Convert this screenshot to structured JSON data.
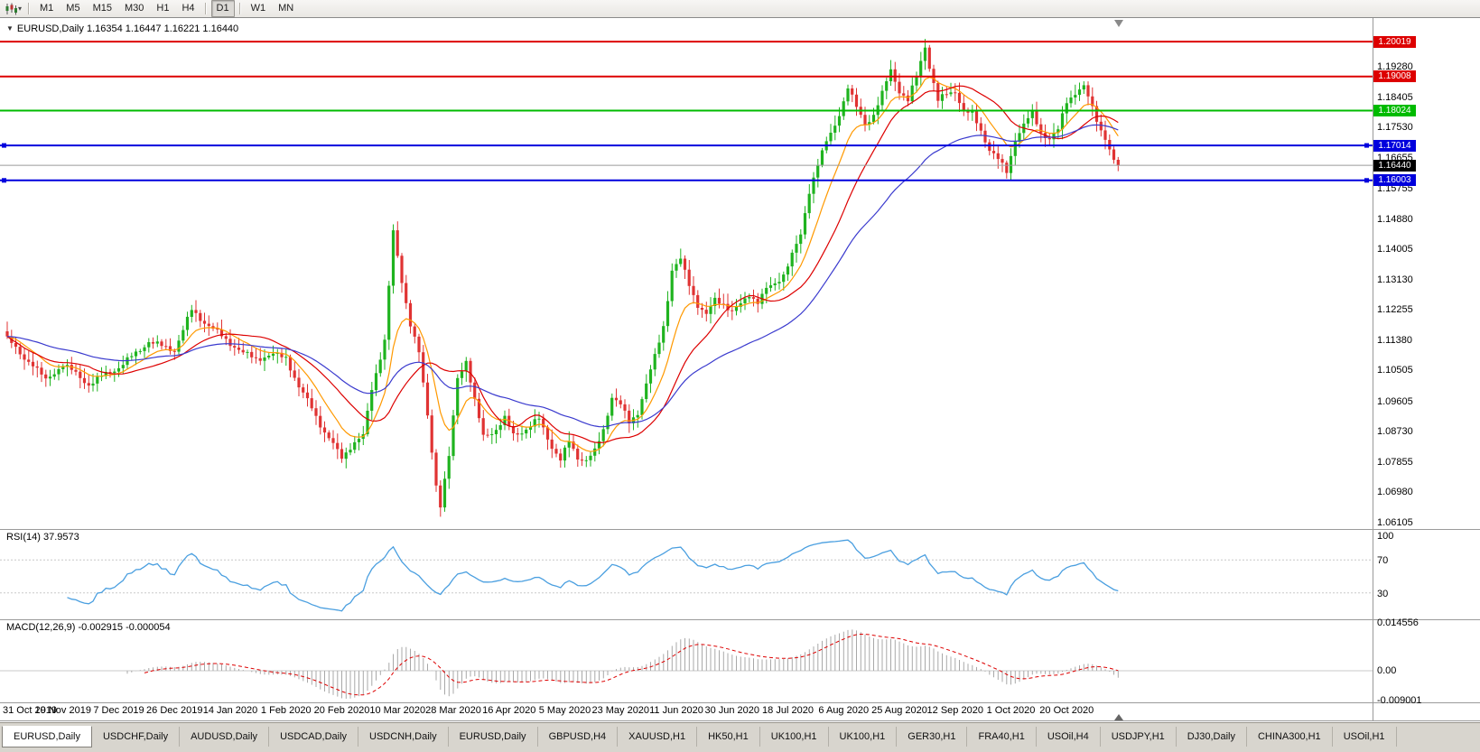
{
  "toolbar": {
    "timeframes": [
      "M1",
      "M5",
      "M15",
      "M30",
      "H1",
      "H4",
      "D1",
      "W1",
      "MN"
    ],
    "active_timeframe": "D1",
    "separators_after": [
      "H4",
      "D1"
    ]
  },
  "tabs": {
    "active_index": 0,
    "items": [
      "EURUSD,Daily",
      "USDCHF,Daily",
      "AUDUSD,Daily",
      "USDCAD,Daily",
      "USDCNH,Daily",
      "EURUSD,Daily",
      "GBPUSD,H4",
      "XAUUSD,H1",
      "HK50,H1",
      "UK100,H1",
      "UK100,H1",
      "GER30,H1",
      "FRA40,H1",
      "USOil,H4",
      "USDJPY,H1",
      "DJ30,Daily",
      "CHINA300,H1",
      "USOil,H1"
    ]
  },
  "chart_data": {
    "type": "candlestick",
    "title_symbol": "EURUSD,Daily",
    "title_ohlc": "1.16354 1.16447 1.16221 1.16440",
    "price_axis_ticks": [
      "1.19280",
      "1.18405",
      "1.17530",
      "1.16655",
      "1.15755",
      "1.14880",
      "1.14005",
      "1.13130",
      "1.12255",
      "1.11380",
      "1.10505",
      "1.09605",
      "1.08730",
      "1.07855",
      "1.06980",
      "1.06105"
    ],
    "price_axis_range": [
      1.0592,
      1.207
    ],
    "date_axis_labels": [
      "31 Oct 2019",
      "19 Nov 2019",
      "7 Dec 2019",
      "26 Dec 2019",
      "14 Jan 2020",
      "1 Feb 2020",
      "20 Feb 2020",
      "10 Mar 2020",
      "28 Mar 2020",
      "16 Apr 2020",
      "5 May 2020",
      "23 May 2020",
      "11 Jun 2020",
      "30 Jun 2020",
      "18 Jul 2020",
      "6 Aug 2020",
      "25 Aug 2020",
      "12 Sep 2020",
      "1 Oct 2020",
      "20 Oct 2020"
    ],
    "bars_per_date_label": 13,
    "bars_total": 260,
    "candle_colors": {
      "up": "#1fb31f",
      "down": "#e03333"
    },
    "horizontal_lines": [
      {
        "price": 1.20019,
        "label": "1.20019",
        "color": "#dd0000",
        "handles": false
      },
      {
        "price": 1.19008,
        "label": "1.19008",
        "color": "#dd0000",
        "handles": false
      },
      {
        "price": 1.18024,
        "label": "1.18024",
        "color": "#00bb00",
        "handles": false
      },
      {
        "price": 1.17014,
        "label": "1.17014",
        "color": "#0000dd",
        "handles": true
      },
      {
        "price": 1.16003,
        "label": "1.16003",
        "color": "#0000dd",
        "handles": true
      }
    ],
    "bid_line": {
      "price": 1.1644,
      "label": "1.16440",
      "color": "#000000",
      "line_color": "#9a9a9a"
    },
    "moving_averages": [
      {
        "type": "ema",
        "period": 10,
        "color": "#ff9900"
      },
      {
        "type": "sma",
        "period": 20,
        "color": "#dd0000"
      },
      {
        "type": "ema",
        "period": 45,
        "color": "#3a3ace"
      }
    ],
    "close_anchors": [
      [
        0,
        1.1145
      ],
      [
        3,
        1.1095
      ],
      [
        6,
        1.107
      ],
      [
        9,
        1.102
      ],
      [
        13,
        1.107
      ],
      [
        16,
        1.104
      ],
      [
        19,
        1.101
      ],
      [
        23,
        1.104
      ],
      [
        26,
        1.106
      ],
      [
        30,
        1.11
      ],
      [
        33,
        1.1135
      ],
      [
        36,
        1.112
      ],
      [
        39,
        1.111
      ],
      [
        43,
        1.1225
      ],
      [
        46,
        1.119
      ],
      [
        49,
        1.116
      ],
      [
        52,
        1.113
      ],
      [
        55,
        1.11
      ],
      [
        58,
        1.1085
      ],
      [
        62,
        1.1095
      ],
      [
        65,
        1.109
      ],
      [
        68,
        1.1
      ],
      [
        71,
        1.0945
      ],
      [
        74,
        1.087
      ],
      [
        78,
        1.08
      ],
      [
        80,
        1.083
      ],
      [
        83,
        1.086
      ],
      [
        85,
        1.1
      ],
      [
        88,
        1.1135
      ],
      [
        90,
        1.145
      ],
      [
        92,
        1.131
      ],
      [
        94,
        1.1185
      ],
      [
        96,
        1.11
      ],
      [
        98,
        1.092
      ],
      [
        100,
        1.072
      ],
      [
        101,
        1.066
      ],
      [
        103,
        1.08
      ],
      [
        105,
        1.103
      ],
      [
        107,
        1.108
      ],
      [
        109,
        1.096
      ],
      [
        111,
        1.086
      ],
      [
        114,
        1.088
      ],
      [
        116,
        1.091
      ],
      [
        118,
        1.0865
      ],
      [
        121,
        1.088
      ],
      [
        124,
        1.091
      ],
      [
        127,
        1.083
      ],
      [
        129,
        1.079
      ],
      [
        131,
        1.0845
      ],
      [
        133,
        1.08
      ],
      [
        135,
        1.079
      ],
      [
        137,
        1.0815
      ],
      [
        139,
        1.088
      ],
      [
        141,
        1.0975
      ],
      [
        143,
        1.095
      ],
      [
        145,
        1.09
      ],
      [
        147,
        1.093
      ],
      [
        149,
        1.101
      ],
      [
        151,
        1.109
      ],
      [
        153,
        1.118
      ],
      [
        155,
        1.134
      ],
      [
        157,
        1.137
      ],
      [
        159,
        1.13
      ],
      [
        161,
        1.124
      ],
      [
        163,
        1.121
      ],
      [
        165,
        1.1255
      ],
      [
        167,
        1.1245
      ],
      [
        169,
        1.122
      ],
      [
        171,
        1.124
      ],
      [
        173,
        1.127
      ],
      [
        175,
        1.125
      ],
      [
        177,
        1.1285
      ],
      [
        179,
        1.13
      ],
      [
        181,
        1.133
      ],
      [
        183,
        1.1385
      ],
      [
        185,
        1.144
      ],
      [
        187,
        1.157
      ],
      [
        189,
        1.165
      ],
      [
        191,
        1.171
      ],
      [
        193,
        1.176
      ],
      [
        195,
        1.183
      ],
      [
        196,
        1.187
      ],
      [
        198,
        1.181
      ],
      [
        200,
        1.1765
      ],
      [
        202,
        1.179
      ],
      [
        204,
        1.185
      ],
      [
        206,
        1.192
      ],
      [
        208,
        1.186
      ],
      [
        210,
        1.183
      ],
      [
        212,
        1.19
      ],
      [
        214,
        1.199
      ],
      [
        215,
        1.193
      ],
      [
        217,
        1.183
      ],
      [
        219,
        1.185
      ],
      [
        221,
        1.186
      ],
      [
        223,
        1.18
      ],
      [
        225,
        1.179
      ],
      [
        227,
        1.1745
      ],
      [
        229,
        1.169
      ],
      [
        231,
        1.166
      ],
      [
        233,
        1.1625
      ],
      [
        235,
        1.172
      ],
      [
        237,
        1.176
      ],
      [
        239,
        1.1795
      ],
      [
        241,
        1.174
      ],
      [
        243,
        1.172
      ],
      [
        245,
        1.1745
      ],
      [
        247,
        1.183
      ],
      [
        249,
        1.1855
      ],
      [
        251,
        1.187
      ],
      [
        253,
        1.181
      ],
      [
        255,
        1.1745
      ],
      [
        257,
        1.169
      ],
      [
        258,
        1.166
      ],
      [
        259,
        1.1644
      ]
    ],
    "rsi": {
      "label": "RSI(14) 37.9573",
      "period": 14,
      "value": 37.9573,
      "axis_ticks": [
        "100",
        "70",
        "30"
      ],
      "axis_range": [
        0,
        100
      ],
      "levels": [
        70,
        30
      ],
      "color": "#4a9fe0"
    },
    "macd": {
      "label": "MACD(12,26,9) -0.002915 -0.000054",
      "fast": 12,
      "slow": 26,
      "signal": 9,
      "macd_value": -0.002915,
      "signal_value": -5.4e-05,
      "axis_ticks": [
        "0.014556",
        "0.00",
        "-0.009001"
      ],
      "axis_range": [
        -0.009001,
        0.014556
      ],
      "histogram_color": "#a8a8a8",
      "signal_color": "#dd0000"
    }
  }
}
